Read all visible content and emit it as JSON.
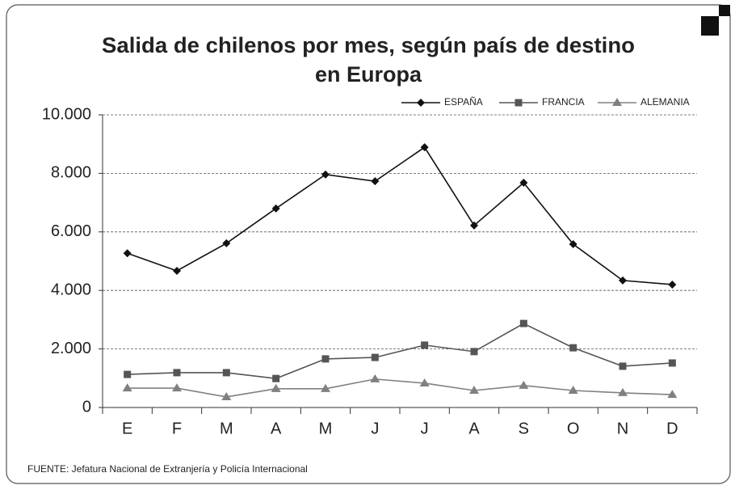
{
  "chart_data": {
    "type": "line",
    "title": [
      "Salida de chilenos por mes, según país de destino",
      "en Europa"
    ],
    "categories": [
      "E",
      "F",
      "M",
      "A",
      "M",
      "J",
      "J",
      "A",
      "S",
      "O",
      "N",
      "D"
    ],
    "series": [
      {
        "name": "ESPAÑA",
        "color": "#111111",
        "marker": "diamond",
        "values": [
          5270,
          4670,
          5610,
          6800,
          7960,
          7730,
          8890,
          6220,
          7680,
          5580,
          4340,
          4200
        ]
      },
      {
        "name": "FRANCIA",
        "color": "#555555",
        "marker": "square",
        "values": [
          1130,
          1190,
          1190,
          990,
          1660,
          1710,
          2130,
          1910,
          2870,
          2040,
          1410,
          1520
        ]
      },
      {
        "name": "ALEMANIA",
        "color": "#808080",
        "marker": "triangle",
        "values": [
          660,
          660,
          360,
          640,
          640,
          970,
          830,
          580,
          750,
          580,
          500,
          440
        ]
      }
    ],
    "ylim": [
      0,
      10000
    ],
    "yticks": [
      0,
      {
        "value": 2000,
        "label": "2.000"
      },
      {
        "value": 4000,
        "label": "4.000"
      },
      {
        "value": 6000,
        "label": "6.000"
      },
      {
        "value": 8000,
        "label": "8.000"
      },
      {
        "value": 10000,
        "label": "10.000"
      }
    ],
    "grid": true,
    "legend": "top-right",
    "source": "FUENTE: Jefatura Nacional de Extranjería y Policía Internacional"
  }
}
